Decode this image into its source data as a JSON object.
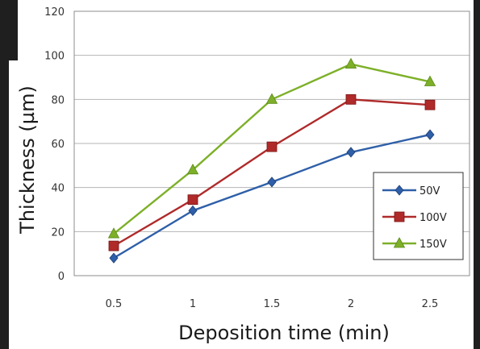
{
  "chart_data": {
    "type": "line",
    "x": [
      0.5,
      1,
      1.5,
      2,
      2.5
    ],
    "x_tick_labels": [
      "0.5",
      "1",
      "1.5",
      "2",
      "2.5"
    ],
    "y_ticks": [
      0,
      20,
      40,
      60,
      80,
      100,
      120
    ],
    "ylim": [
      0,
      120
    ],
    "xlabel": "Deposition time (min)",
    "ylabel": "Thickness (µm)",
    "grid": true,
    "legend_position": "bottom-right",
    "series": [
      {
        "name": "50V",
        "values": [
          8,
          29.5,
          42.5,
          56,
          64
        ],
        "color": "#2e5fa8",
        "marker": "diamond"
      },
      {
        "name": "100V",
        "values": [
          13.5,
          34.5,
          58.5,
          80,
          77.5
        ],
        "color": "#b02a2a",
        "marker": "square"
      },
      {
        "name": "150V",
        "values": [
          19,
          48,
          80,
          96,
          88
        ],
        "color": "#7db028",
        "marker": "triangle"
      }
    ]
  }
}
